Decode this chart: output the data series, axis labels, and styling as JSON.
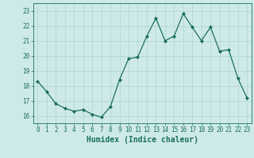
{
  "x": [
    0,
    1,
    2,
    3,
    4,
    5,
    6,
    7,
    8,
    9,
    10,
    11,
    12,
    13,
    14,
    15,
    16,
    17,
    18,
    19,
    20,
    21,
    22,
    23
  ],
  "y": [
    18.3,
    17.6,
    16.8,
    16.5,
    16.3,
    16.4,
    16.1,
    15.9,
    16.6,
    18.4,
    19.8,
    19.9,
    21.3,
    22.5,
    21.0,
    21.3,
    22.8,
    21.9,
    21.0,
    21.9,
    20.3,
    20.4,
    18.5,
    17.2
  ],
  "line_color": "#1a6e5e",
  "marker": "D",
  "marker_size": 2,
  "bg_color": "#ceeae8",
  "grid_color": "#aed4d1",
  "xlabel": "Humidex (Indice chaleur)",
  "xlim": [
    -0.5,
    23.5
  ],
  "ylim": [
    15.5,
    23.5
  ],
  "yticks": [
    16,
    17,
    18,
    19,
    20,
    21,
    22,
    23
  ],
  "xticks": [
    0,
    1,
    2,
    3,
    4,
    5,
    6,
    7,
    8,
    9,
    10,
    11,
    12,
    13,
    14,
    15,
    16,
    17,
    18,
    19,
    20,
    21,
    22,
    23
  ],
  "tick_fontsize": 5.5,
  "xlabel_fontsize": 7,
  "tick_color": "#1a6e5e",
  "label_color": "#1a6e5e",
  "axis_color": "#1a6e5e"
}
